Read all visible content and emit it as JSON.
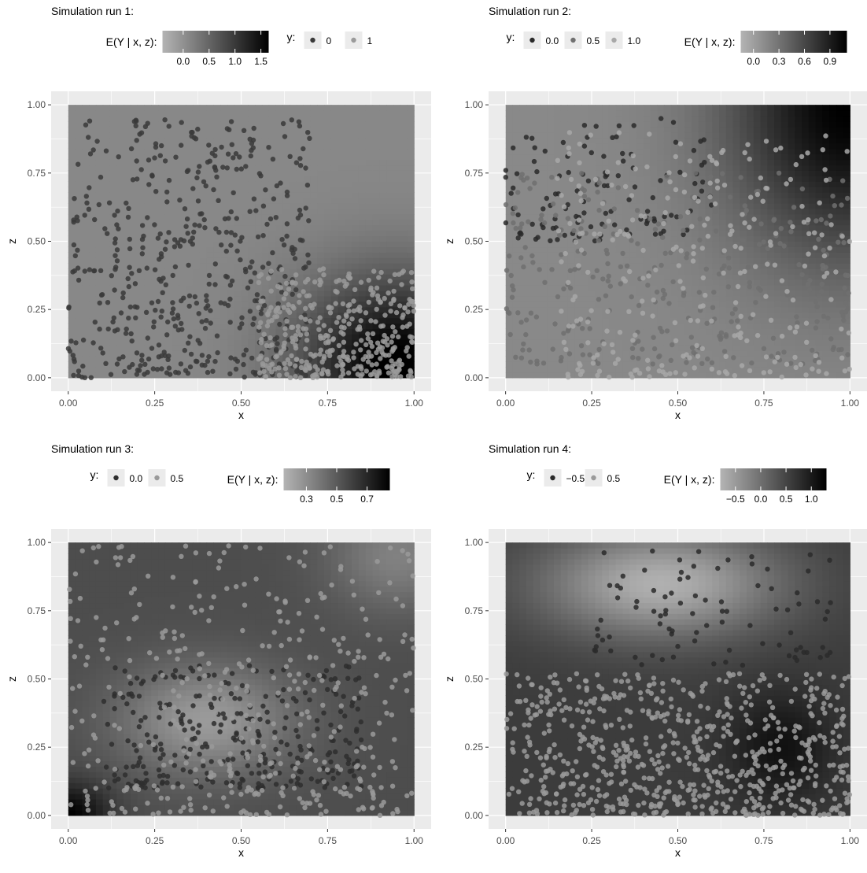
{
  "chart_data": [
    {
      "type": "scatter",
      "title": "Simulation run 1:",
      "xlabel": "x",
      "ylabel": "z",
      "xlim": [
        0,
        1
      ],
      "ylim": [
        0,
        1
      ],
      "x_ticks": [
        "0.00",
        "0.25",
        "0.50",
        "0.75",
        "1.00"
      ],
      "y_ticks": [
        "0.00",
        "0.25",
        "0.50",
        "0.75",
        "1.00"
      ],
      "fill_legend": {
        "title": "E(Y | x, z):",
        "ticks": [
          "0.0",
          "0.5",
          "1.0",
          "1.5"
        ],
        "tick_values": [
          0.0,
          0.5,
          1.0,
          1.5
        ],
        "range": [
          -0.4,
          1.65
        ],
        "low_color": "#b4b4b4",
        "high_color": "#000000"
      },
      "point_legend": {
        "title": "y:",
        "labels": [
          "0",
          "1"
        ],
        "colors": [
          "#3a3a3a",
          "#9a9a9a"
        ]
      },
      "legend_order": [
        "fill",
        "point"
      ],
      "surface": {
        "base": 0.1,
        "terms": [
          {
            "cx": 0.95,
            "cz": 0.05,
            "amp": 1.6,
            "sx": 0.28,
            "sz": 0.32
          }
        ]
      },
      "series": [
        {
          "name": "0",
          "color": "#3a3a3a",
          "count": 500,
          "seed": 11,
          "x_pref": [
            0.0,
            0.7
          ],
          "z_pref": [
            0.0,
            0.95
          ]
        },
        {
          "name": "1",
          "color": "#9a9a9a",
          "count": 380,
          "seed": 12,
          "x_pref": [
            0.55,
            1.0
          ],
          "z_pref": [
            0.0,
            0.4
          ]
        }
      ]
    },
    {
      "type": "scatter",
      "title": "Simulation run 2:",
      "xlabel": "x",
      "ylabel": "z",
      "xlim": [
        0,
        1
      ],
      "ylim": [
        0,
        1
      ],
      "x_ticks": [
        "0.00",
        "0.25",
        "0.50",
        "0.75",
        "1.00"
      ],
      "y_ticks": [
        "0.00",
        "0.25",
        "0.50",
        "0.75",
        "1.00"
      ],
      "fill_legend": {
        "title": "E(Y | x, z):",
        "ticks": [
          "0.0",
          "0.3",
          "0.6",
          "0.9"
        ],
        "tick_values": [
          0.0,
          0.3,
          0.6,
          0.9
        ],
        "range": [
          -0.15,
          1.1
        ],
        "low_color": "#b4b4b4",
        "high_color": "#000000"
      },
      "point_legend": {
        "title": "y:",
        "labels": [
          "0.0",
          "0.5",
          "1.0"
        ],
        "colors": [
          "#2a2a2a",
          "#707070",
          "#a8a8a8"
        ]
      },
      "legend_order": [
        "point",
        "fill"
      ],
      "surface": {
        "base": 0.15,
        "terms": [
          {
            "cx": 1.0,
            "cz": 1.0,
            "amp": 0.95,
            "sx": 0.35,
            "sz": 0.55
          }
        ]
      },
      "series": [
        {
          "name": "0.0",
          "color": "#2a2a2a",
          "count": 120,
          "seed": 21,
          "x_pref": [
            0.0,
            0.6
          ],
          "z_pref": [
            0.5,
            0.95
          ]
        },
        {
          "name": "0.5",
          "color": "#707070",
          "count": 320,
          "seed": 22,
          "x_pref": [
            0.0,
            1.0
          ],
          "z_pref": [
            0.05,
            0.75
          ]
        },
        {
          "name": "1.0",
          "color": "#a8a8a8",
          "count": 280,
          "seed": 23,
          "x_pref": [
            0.15,
            1.0
          ],
          "z_pref": [
            0.0,
            0.9
          ]
        }
      ]
    },
    {
      "type": "scatter",
      "title": "Simulation run 3:",
      "xlabel": "x",
      "ylabel": "z",
      "xlim": [
        0,
        1
      ],
      "ylim": [
        0,
        1
      ],
      "x_ticks": [
        "0.00",
        "0.25",
        "0.50",
        "0.75",
        "1.00"
      ],
      "y_ticks": [
        "0.00",
        "0.25",
        "0.50",
        "0.75",
        "1.00"
      ],
      "fill_legend": {
        "title": "E(Y | x, z):",
        "ticks": [
          "0.3",
          "0.5",
          "0.7"
        ],
        "tick_values": [
          0.3,
          0.5,
          0.7
        ],
        "range": [
          0.15,
          0.85
        ],
        "low_color": "#b4b4b4",
        "high_color": "#000000"
      },
      "point_legend": {
        "title": "y:",
        "labels": [
          "0.0",
          "0.5"
        ],
        "colors": [
          "#2e2e2e",
          "#9a9a9a"
        ]
      },
      "legend_order": [
        "point",
        "fill"
      ],
      "surface": {
        "base": 0.55,
        "terms": [
          {
            "cx": 0.4,
            "cz": 0.35,
            "amp": -0.3,
            "sx": 0.25,
            "sz": 0.2
          },
          {
            "cx": 0.0,
            "cz": 0.0,
            "amp": 0.3,
            "sx": 0.12,
            "sz": 0.12
          },
          {
            "cx": 0.95,
            "cz": 0.95,
            "amp": -0.2,
            "sx": 0.2,
            "sz": 0.2
          }
        ]
      },
      "series": [
        {
          "name": "0.0",
          "color": "#2e2e2e",
          "count": 300,
          "seed": 31,
          "x_pref": [
            0.1,
            0.85
          ],
          "z_pref": [
            0.1,
            0.55
          ]
        },
        {
          "name": "0.5",
          "color": "#9a9a9a",
          "count": 420,
          "seed": 32,
          "x_pref": [
            0.0,
            1.0
          ],
          "z_pref": [
            0.0,
            1.0
          ]
        }
      ]
    },
    {
      "type": "scatter",
      "title": "Simulation run 4:",
      "xlabel": "x",
      "ylabel": "z",
      "xlim": [
        0,
        1
      ],
      "ylim": [
        0,
        1
      ],
      "x_ticks": [
        "0.00",
        "0.25",
        "0.50",
        "0.75",
        "1.00"
      ],
      "y_ticks": [
        "0.00",
        "0.25",
        "0.50",
        "0.75",
        "1.00"
      ],
      "fill_legend": {
        "title": "E(Y | x, z):",
        "ticks": [
          "−0.5",
          "0.0",
          "0.5",
          "1.0"
        ],
        "tick_values": [
          -0.5,
          0.0,
          0.5,
          1.0
        ],
        "range": [
          -0.8,
          1.3
        ],
        "low_color": "#b4b4b4",
        "high_color": "#000000"
      },
      "point_legend": {
        "title": "y:",
        "labels": [
          "−0.5",
          "0.5"
        ],
        "colors": [
          "#2a2a2a",
          "#9a9a9a"
        ]
      },
      "legend_order": [
        "point",
        "fill"
      ],
      "surface": {
        "base": 0.6,
        "terms": [
          {
            "cx": 0.45,
            "cz": 0.85,
            "amp": -1.35,
            "sx": 0.35,
            "sz": 0.2
          },
          {
            "cx": 0.8,
            "cz": 0.25,
            "amp": 0.5,
            "sx": 0.15,
            "sz": 0.2
          }
        ]
      },
      "series": [
        {
          "name": "−0.5",
          "color": "#2a2a2a",
          "count": 90,
          "seed": 41,
          "x_pref": [
            0.25,
            0.95
          ],
          "z_pref": [
            0.55,
            0.97
          ]
        },
        {
          "name": "0.5",
          "color": "#9a9a9a",
          "count": 700,
          "seed": 42,
          "x_pref": [
            0.0,
            1.0
          ],
          "z_pref": [
            0.0,
            0.52
          ]
        }
      ]
    }
  ]
}
